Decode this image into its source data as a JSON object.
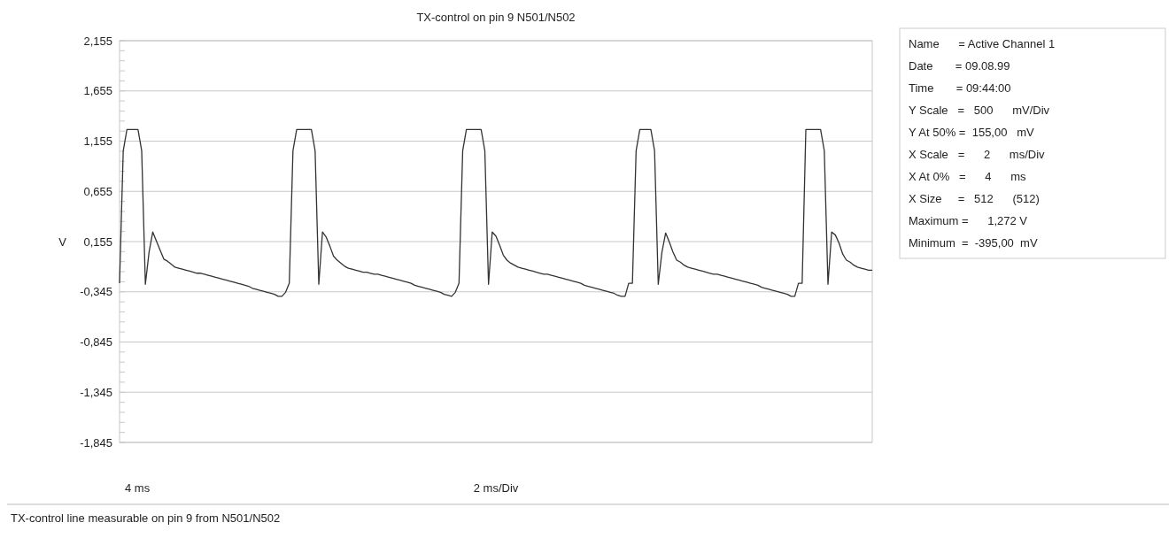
{
  "chart_data": {
    "type": "line",
    "title": "TX-control on pin 9 N501/N502",
    "xlabel": "2 ms/Div",
    "ylabel": "V",
    "annotations": [
      "TX-control line measurable on pin 9 from N501/N502",
      "4 ms",
      "Name      = Active Channel 1",
      "Date       = 09.08.99",
      "Time       = 09:44:00",
      "Y Scale   =   500      mV/Div",
      "Y At 50% =  155,00   mV",
      "X Scale   =      2      ms/Div",
      "X At 0%   =      4      ms",
      "X Size     =   512      (512)",
      "Maximum =      1,272 V",
      "Minimum  =  -395,00  mV"
    ],
    "ylim": [
      -1.845,
      2.155
    ],
    "yticks": [
      {
        "value": 2.155,
        "label": "2,155"
      },
      {
        "value": 1.655,
        "label": "1,655"
      },
      {
        "value": 1.155,
        "label": "1,155"
      },
      {
        "value": 0.655,
        "label": "0,655"
      },
      {
        "value": 0.155,
        "label": "0,155"
      },
      {
        "value": -0.345,
        "label": "-0,345"
      },
      {
        "value": -0.845,
        "label": "-0,845"
      },
      {
        "value": -1.345,
        "label": "-1,345"
      },
      {
        "value": -1.845,
        "label": "-1,845"
      }
    ],
    "grid": "y",
    "marker": "none",
    "line_style": "solid",
    "categories": [
      null,
      null,
      null,
      null,
      null,
      null,
      null,
      null,
      null,
      null,
      null,
      null,
      null,
      null,
      null,
      null,
      null,
      null,
      null,
      null,
      null,
      null,
      null,
      null,
      null,
      null,
      null,
      null,
      null,
      null,
      null,
      null,
      null,
      null,
      null,
      null,
      null,
      null,
      null,
      null,
      null,
      null,
      null,
      null,
      null,
      null,
      null,
      null,
      null,
      null,
      null,
      null,
      null,
      null,
      null,
      null,
      null,
      null,
      null,
      null,
      null,
      null,
      null,
      null,
      null,
      null,
      null,
      null,
      null,
      null,
      null,
      null,
      null,
      null,
      null,
      null,
      null,
      null,
      null,
      null,
      null,
      null,
      null,
      null,
      null,
      null,
      null,
      null,
      null,
      null,
      null,
      null,
      null,
      null,
      null,
      null,
      null,
      null,
      null,
      null,
      null,
      null,
      null,
      null,
      null,
      null,
      null,
      null,
      null,
      null,
      null,
      null,
      null,
      null,
      null,
      null,
      null,
      null,
      null,
      null,
      null,
      null,
      null,
      null,
      null,
      null,
      null,
      null,
      null,
      null,
      null,
      null,
      null,
      null,
      null,
      null,
      null,
      null,
      null,
      null,
      null,
      null,
      null,
      null,
      null,
      null,
      null,
      null,
      null,
      null,
      null,
      null,
      null,
      null,
      null,
      null,
      null,
      null,
      null,
      null,
      null,
      null,
      null,
      null,
      null,
      null,
      null,
      null,
      null,
      null,
      null,
      null,
      null,
      null,
      null,
      null,
      null,
      null,
      null,
      null,
      null,
      null,
      null,
      null,
      null,
      null,
      null,
      null,
      null,
      null,
      null,
      null,
      null,
      null,
      null,
      null,
      null,
      null,
      null,
      null,
      null,
      null,
      null,
      null,
      null
    ],
    "series": [
      {
        "color": "#333333",
        "values": [
          -0.26,
          1.06,
          1.27,
          1.27,
          1.27,
          1.27,
          1.06,
          -0.27,
          0.05,
          0.25,
          0.16,
          0.07,
          -0.02,
          -0.04,
          -0.07,
          -0.1,
          -0.11,
          -0.12,
          -0.13,
          -0.14,
          -0.15,
          -0.16,
          -0.16,
          -0.17,
          -0.18,
          -0.19,
          -0.2,
          -0.21,
          -0.22,
          -0.23,
          -0.24,
          -0.25,
          -0.26,
          -0.27,
          -0.28,
          -0.29,
          -0.31,
          -0.32,
          -0.33,
          -0.34,
          -0.35,
          -0.36,
          -0.37,
          -0.39,
          -0.39,
          -0.35,
          -0.26,
          1.06,
          1.27,
          1.27,
          1.27,
          1.27,
          1.27,
          1.06,
          -0.27,
          0.25,
          0.2,
          0.11,
          0.01,
          -0.03,
          -0.06,
          -0.09,
          -0.11,
          -0.12,
          -0.13,
          -0.14,
          -0.15,
          -0.15,
          -0.16,
          -0.17,
          -0.17,
          -0.18,
          -0.19,
          -0.2,
          -0.21,
          -0.22,
          -0.23,
          -0.24,
          -0.25,
          -0.26,
          -0.28,
          -0.29,
          -0.3,
          -0.31,
          -0.32,
          -0.33,
          -0.34,
          -0.35,
          -0.37,
          -0.38,
          -0.39,
          -0.35,
          -0.26,
          1.06,
          1.27,
          1.27,
          1.27,
          1.27,
          1.27,
          1.06,
          -0.27,
          0.25,
          0.21,
          0.12,
          0.02,
          -0.03,
          -0.06,
          -0.08,
          -0.1,
          -0.11,
          -0.12,
          -0.13,
          -0.14,
          -0.15,
          -0.16,
          -0.17,
          -0.17,
          -0.18,
          -0.19,
          -0.2,
          -0.21,
          -0.22,
          -0.23,
          -0.24,
          -0.25,
          -0.26,
          -0.28,
          -0.29,
          -0.3,
          -0.31,
          -0.32,
          -0.33,
          -0.34,
          -0.35,
          -0.36,
          -0.38,
          -0.39,
          -0.39,
          -0.26,
          -0.26,
          1.06,
          1.27,
          1.27,
          1.27,
          1.27,
          1.06,
          -0.27,
          0.05,
          0.24,
          0.15,
          0.05,
          -0.03,
          -0.05,
          -0.08,
          -0.1,
          -0.11,
          -0.12,
          -0.13,
          -0.14,
          -0.15,
          -0.16,
          -0.17,
          -0.17,
          -0.18,
          -0.19,
          -0.2,
          -0.21,
          -0.22,
          -0.23,
          -0.24,
          -0.25,
          -0.26,
          -0.27,
          -0.28,
          -0.3,
          -0.31,
          -0.32,
          -0.33,
          -0.34,
          -0.35,
          -0.36,
          -0.37,
          -0.39,
          -0.39,
          -0.26,
          -0.26,
          1.27,
          1.27,
          1.27,
          1.27,
          1.27,
          1.06,
          -0.27,
          0.25,
          0.22,
          0.14,
          0.03,
          -0.03,
          -0.05,
          -0.08,
          -0.1,
          -0.11,
          -0.12,
          -0.13,
          -0.13
        ]
      }
    ]
  }
}
